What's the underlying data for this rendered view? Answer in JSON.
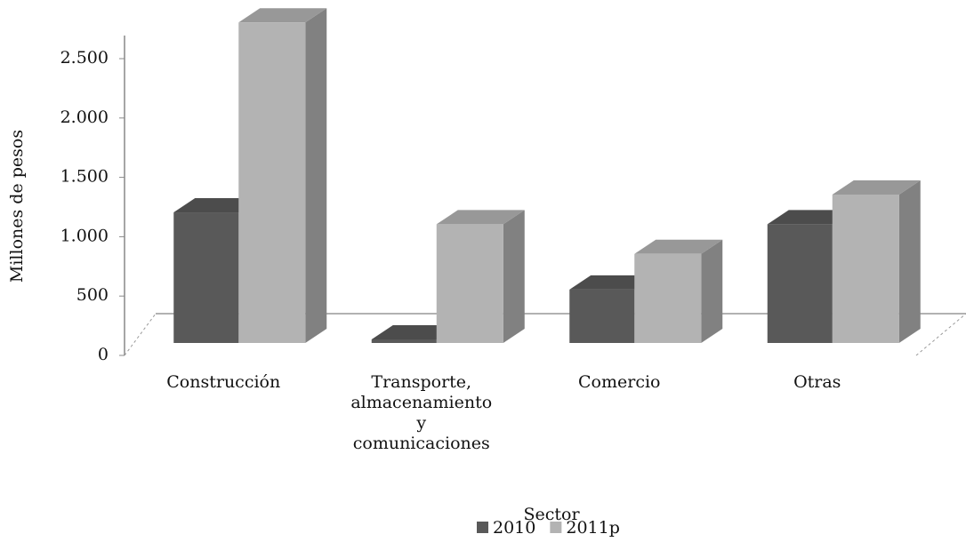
{
  "chart_data": {
    "type": "bar3d",
    "xlabel": "Sector",
    "ylabel": "Millones de pesos",
    "categories": [
      "Construcción",
      "Transporte, almacenamiento y comunicaciones",
      "Comercio",
      "Otras"
    ],
    "series": [
      {
        "name": "2010",
        "color": "#595959",
        "values": [
          1100,
          30,
          450,
          1000
        ]
      },
      {
        "name": "2011p",
        "color": "#b3b3b3",
        "values": [
          2700,
          1000,
          750,
          1250
        ]
      }
    ],
    "ylim": [
      0,
      2500
    ],
    "yticks": [
      0,
      500,
      {
        "value": 1000,
        "label": "1.000"
      },
      {
        "value": 1500,
        "label": "1.500"
      },
      {
        "value": 2000,
        "label": "2.000"
      },
      {
        "value": 2500,
        "label": "2.500"
      }
    ],
    "legend": "bottom"
  }
}
